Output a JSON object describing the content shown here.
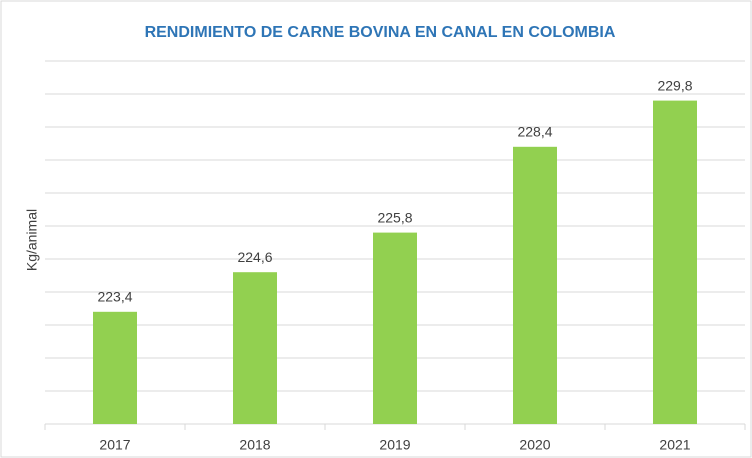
{
  "chart_data": {
    "type": "bar",
    "title": "RENDIMIENTO DE CARNE BOVINA EN CANAL EN COLOMBIA",
    "y_label": "Kg/animal",
    "categories": [
      "2017",
      "2018",
      "2019",
      "2020",
      "2021"
    ],
    "values": [
      223.4,
      224.6,
      225.8,
      228.4,
      229.8
    ],
    "value_labels": [
      "223,4",
      "224,6",
      "225,8",
      "228,4",
      "229,8"
    ],
    "color": "#92d050",
    "ylim": [
      220,
      231
    ],
    "yticks": [
      220,
      221,
      222,
      223,
      224,
      225,
      226,
      227,
      228,
      229,
      230,
      231
    ],
    "grid": true
  }
}
